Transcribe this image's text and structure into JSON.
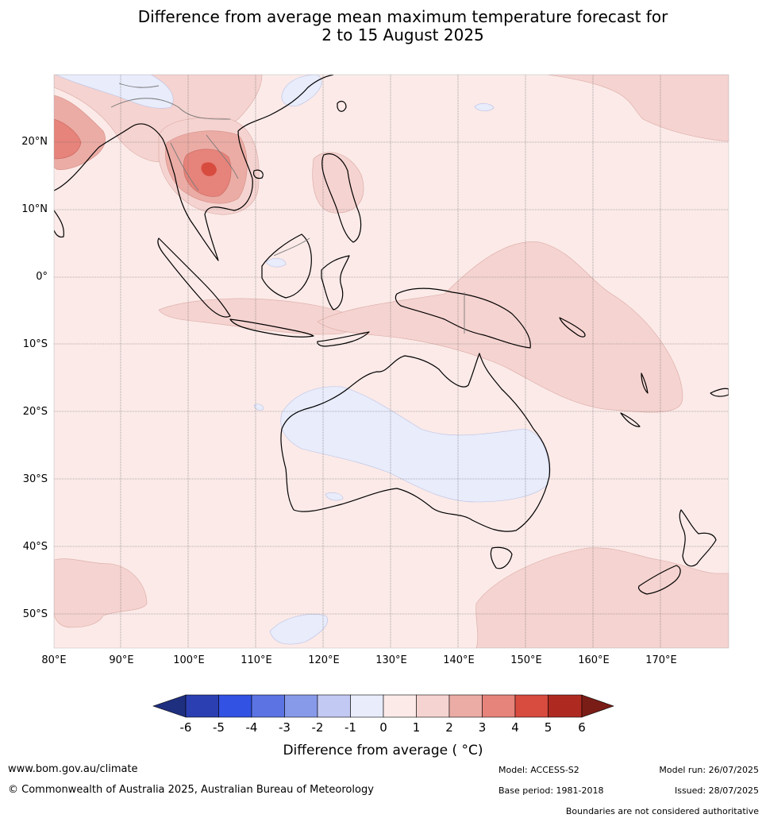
{
  "title": {
    "line1": "Difference from average mean maximum temperature forecast for",
    "line2": "2 to 15 August 2025"
  },
  "map": {
    "lat_labels": [
      "20°N",
      "10°N",
      "0°",
      "10°S",
      "20°S",
      "30°S",
      "40°S",
      "50°S"
    ],
    "lon_labels": [
      "80°E",
      "90°E",
      "100°E",
      "110°E",
      "120°E",
      "130°E",
      "140°E",
      "150°E",
      "160°E",
      "170°E"
    ],
    "lon_range": [
      80,
      180
    ],
    "lat_range": [
      -55,
      30
    ],
    "land_color": "#fbeae8",
    "border_color": "#000000"
  },
  "colorbar": {
    "ticks": [
      "-6",
      "-5",
      "-4",
      "-3",
      "-2",
      "-1",
      "0",
      "1",
      "2",
      "3",
      "4",
      "5",
      "6"
    ],
    "colors": [
      "#1f2f7f",
      "#2b3fb2",
      "#3252e3",
      "#5b73e3",
      "#8799e9",
      "#c2c9f2",
      "#e8ecfb",
      "#fbeae8",
      "#f5d3d0",
      "#ebaca5",
      "#e6837a",
      "#d84b3f",
      "#ae2a20",
      "#7a1d17"
    ],
    "label": "Difference from average ( °C)"
  },
  "footer": {
    "website": "www.bom.gov.au/climate",
    "copyright": "© Commonwealth of Australia 2025, Australian Bureau of Meteorology",
    "model": "Model: ACCESS-S2",
    "model_run": "Model run: 26/07/2025",
    "base_period": "Base period: 1981-2018",
    "issued": "Issued: 28/07/2025",
    "disclaimer": "Boundaries are not considered authoritative"
  }
}
